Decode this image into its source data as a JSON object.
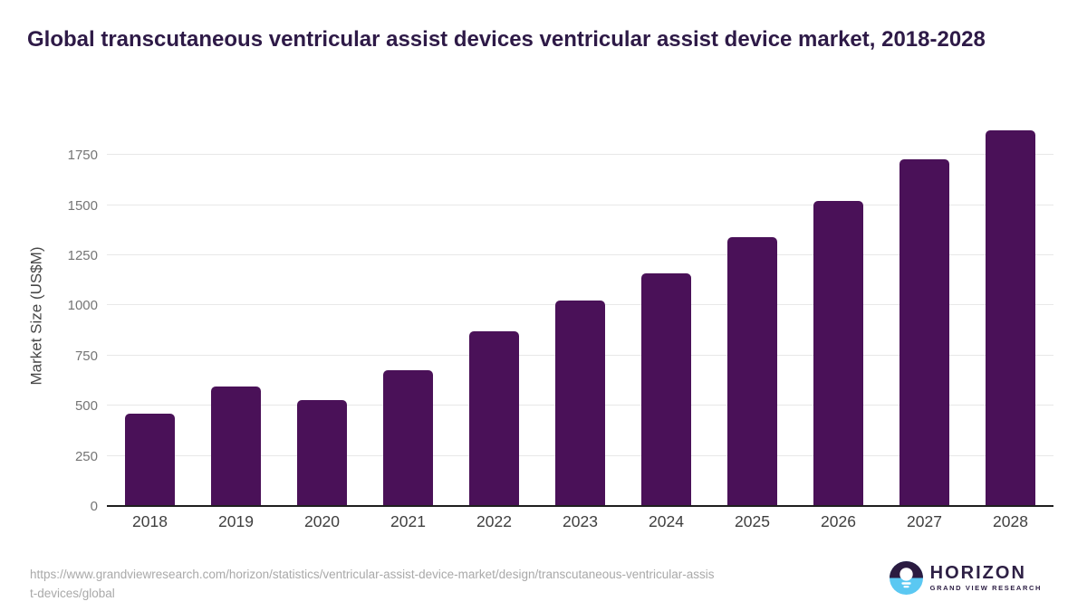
{
  "title": "Global transcutaneous ventricular assist devices ventricular assist device market, 2018-2028",
  "chart_data": {
    "type": "bar",
    "categories": [
      "2018",
      "2019",
      "2020",
      "2021",
      "2022",
      "2023",
      "2024",
      "2025",
      "2026",
      "2027",
      "2028"
    ],
    "values": [
      460,
      595,
      530,
      675,
      870,
      1025,
      1160,
      1340,
      1520,
      1730,
      1875
    ],
    "title": "Global transcutaneous ventricular assist devices ventricular assist device market, 2018-2028",
    "xlabel": "",
    "ylabel": "Market Size (US$M)",
    "yticks": [
      0,
      250,
      500,
      750,
      1000,
      1250,
      1500,
      1750
    ],
    "ylim": [
      0,
      1900
    ],
    "grid": "horizontal",
    "legend": "none",
    "bar_color": "#4a1158"
  },
  "footer": {
    "source_url_line1": "https://www.grandviewresearch.com/horizon/statistics/ventricular-assist-device-market/design/transcutaneous-ventricular-assis",
    "source_url_line2": "t-devices/global",
    "logo": {
      "name": "HORIZON",
      "subtitle": "GRAND VIEW RESEARCH"
    }
  },
  "colors": {
    "title_text": "#2e1a47",
    "bar": "#4a1158",
    "gridline": "#e8e8e8",
    "axis_line": "#1f1f1f",
    "y_tick_text": "#757575",
    "x_tick_text": "#3f3f3f",
    "url_text": "#a9a9a9",
    "logo_dark": "#2b1b41",
    "logo_blue": "#5bc8f2"
  }
}
